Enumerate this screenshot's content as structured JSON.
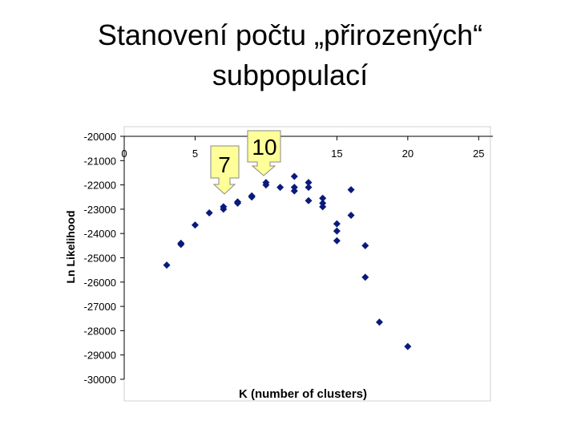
{
  "chart_data": {
    "type": "scatter",
    "title": [
      "Stanovení počtu „přirozených“",
      "subpopulací"
    ],
    "x_label": "K (number of clusters)",
    "y_label": "Ln Likelihood",
    "annotations": [
      "7",
      "10"
    ],
    "color": "#0a1a7a",
    "xlim": [
      0,
      26
    ],
    "xticks": [
      0,
      5,
      10,
      15,
      20,
      25
    ],
    "ylim": [
      -30000,
      -20000
    ],
    "yticks": [
      -20000,
      -21000,
      -22000,
      -23000,
      -24000,
      -25000,
      -26000,
      -27000,
      -28000,
      -29000,
      -30000
    ],
    "x": [
      3,
      4,
      4,
      5,
      6,
      7,
      7,
      8,
      8,
      9,
      9,
      10,
      10,
      11,
      12,
      12,
      12,
      13,
      13,
      13,
      14,
      14,
      14,
      15,
      15,
      15,
      16,
      16,
      17,
      17,
      18,
      20
    ],
    "y": [
      -25300,
      -24400,
      -24450,
      -23650,
      -23150,
      -22900,
      -23000,
      -22700,
      -22750,
      -22450,
      -22500,
      -21900,
      -22000,
      -22100,
      -21650,
      -22100,
      -22250,
      -21900,
      -22100,
      -22650,
      -22550,
      -22750,
      -22900,
      -23600,
      -23900,
      -24300,
      -22200,
      -23250,
      -24500,
      -25800,
      -27650,
      -28650
    ]
  }
}
